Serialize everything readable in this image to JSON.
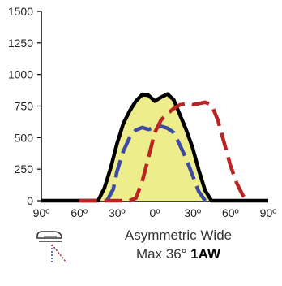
{
  "chart_data": {
    "type": "area",
    "title": "",
    "xlabel": "",
    "ylabel": "",
    "xlim": [
      -90,
      90
    ],
    "ylim": [
      0,
      1500
    ],
    "y_ticks": [
      0,
      250,
      500,
      750,
      1000,
      1250,
      1500
    ],
    "x_ticks": [
      -90,
      -60,
      -30,
      0,
      30,
      60,
      90
    ],
    "x_tick_labels": [
      "90º",
      "60º",
      "30º",
      "0º",
      "30º",
      "60º",
      "90º"
    ],
    "grid": false,
    "legend": "none",
    "series": [
      {
        "style": "filled-solid",
        "color": "#000000",
        "fill": "#eded8c",
        "x": [
          -90,
          -45,
          -40,
          -35,
          -30,
          -25,
          -20,
          -15,
          -10,
          -5,
          0,
          5,
          10,
          15,
          20,
          25,
          30,
          35,
          40,
          45,
          90
        ],
        "y": [
          0,
          0,
          100,
          260,
          450,
          610,
          710,
          790,
          840,
          835,
          790,
          820,
          845,
          800,
          680,
          560,
          420,
          240,
          80,
          0,
          0
        ]
      },
      {
        "style": "dashed",
        "color": "#3d4aa3",
        "x": [
          -38,
          -33,
          -30,
          -25,
          -20,
          -15,
          -10,
          -5,
          0,
          5,
          10,
          15,
          20,
          25,
          30,
          35,
          40
        ],
        "y": [
          0,
          90,
          230,
          390,
          500,
          560,
          580,
          565,
          580,
          590,
          575,
          540,
          440,
          330,
          200,
          70,
          0
        ]
      },
      {
        "style": "dashed",
        "color": "#b82525",
        "x": [
          -60,
          -50,
          -40,
          -30,
          -20,
          -15,
          -10,
          -5,
          0,
          5,
          10,
          15,
          20,
          25,
          30,
          35,
          40,
          45,
          50,
          55,
          60,
          65,
          70,
          75
        ],
        "y": [
          0,
          0,
          0,
          0,
          0,
          20,
          150,
          340,
          540,
          640,
          690,
          730,
          760,
          770,
          760,
          770,
          780,
          760,
          640,
          460,
          280,
          140,
          40,
          0
        ]
      }
    ]
  },
  "caption": {
    "line1": "Asymmetric Wide",
    "line2_prefix": "Max 36°",
    "line2_code": "1AW"
  }
}
